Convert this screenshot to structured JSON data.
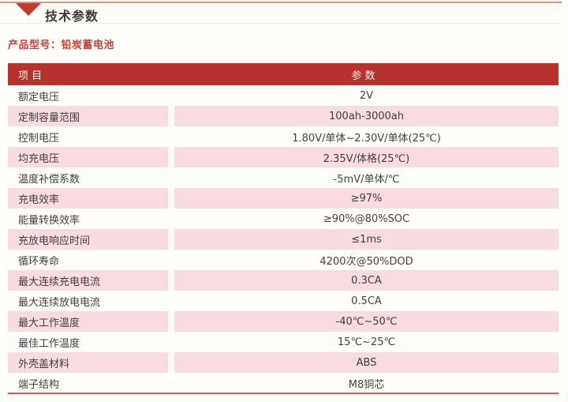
{
  "header": {
    "title": "技术参数"
  },
  "product": {
    "label": "产品型号：",
    "value": "铅炭蓄电池"
  },
  "table": {
    "columns": [
      "项 目",
      "参 数"
    ],
    "rows": [
      {
        "label": "额定电压",
        "value": "2V"
      },
      {
        "label": "定制容量范围",
        "value": "100ah-3000ah"
      },
      {
        "label": "控制电压",
        "value": "1.80V/单体~2.30V/单体(25℃)"
      },
      {
        "label": "均充电压",
        "value": "2.35V/体格(25℃)"
      },
      {
        "label": "温度补偿系数",
        "value": "-5mV/单体/℃"
      },
      {
        "label": "充电效率",
        "value": "≥97%"
      },
      {
        "label": "能量转换效率",
        "value": "≥90%@80%SOC"
      },
      {
        "label": "充放电响应时间",
        "value": "≤1ms"
      },
      {
        "label": "循环寿命",
        "value": "4200次@50%DOD"
      },
      {
        "label": "最大连续充电电流",
        "value": "0.3CA"
      },
      {
        "label": "最大连续放电电流",
        "value": "0.5CA"
      },
      {
        "label": "最大工作温度",
        "value": "-40℃~50℃"
      },
      {
        "label": "最佳工作温度",
        "value": "15℃~25℃"
      },
      {
        "label": "外壳盖材料",
        "value": "ABS"
      },
      {
        "label": "端子结构",
        "value": "M8铜芯"
      }
    ]
  },
  "colors": {
    "header_red": "#b5332c",
    "row_pink": "#f8dce0",
    "accent_top": "#e59482",
    "accent_bottom": "#d95e50",
    "product_red": "#c5413a",
    "triangle_red": "#bf3a2f"
  }
}
